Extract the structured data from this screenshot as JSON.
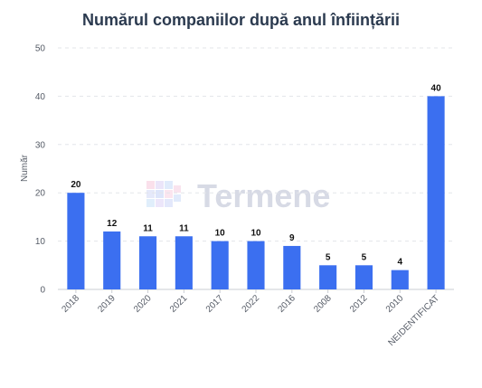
{
  "colors": {
    "bar": "#3b6ff0",
    "grid": "#e3e5ea",
    "axis": "#c9ccd3",
    "title": "#2b3a4f"
  },
  "watermark": {
    "text": "Termene",
    "icon": "termene-cube-logo"
  },
  "chart_data": {
    "type": "bar",
    "title": "Numărul companiilor după anul înființării",
    "xlabel": "",
    "ylabel": "Număr",
    "ylim": [
      0,
      50
    ],
    "yticks": [
      0,
      10,
      20,
      30,
      40,
      50
    ],
    "grid": true,
    "legend": "none",
    "categories": [
      "2018",
      "2019",
      "2020",
      "2021",
      "2017",
      "2022",
      "2016",
      "2008",
      "2012",
      "2010",
      "NEIDENTIFICAT"
    ],
    "values": [
      20,
      12,
      11,
      11,
      10,
      10,
      9,
      5,
      5,
      4,
      40
    ]
  }
}
